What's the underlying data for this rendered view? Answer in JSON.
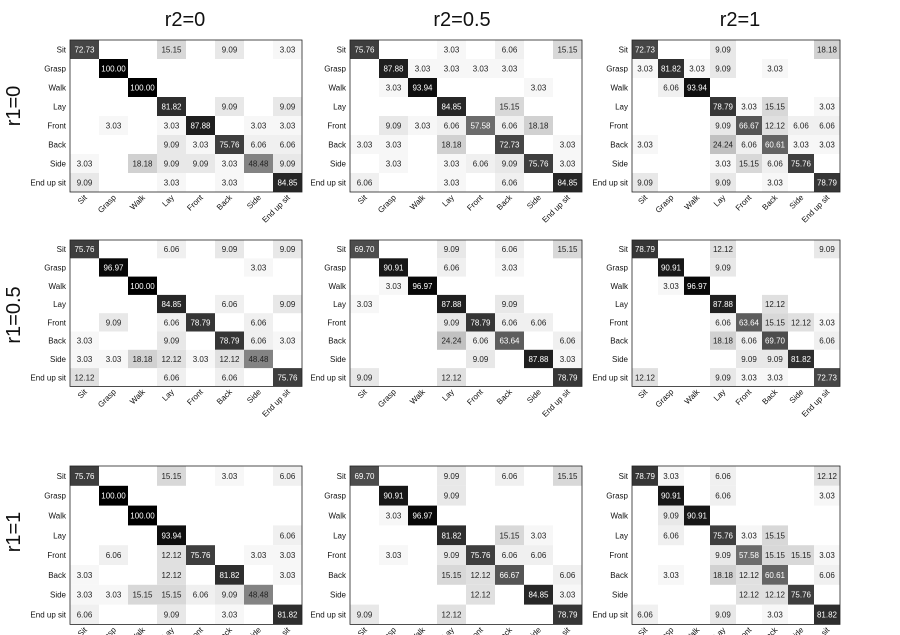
{
  "col_titles": [
    "r2=0",
    "r2=0.5",
    "r2=1"
  ],
  "row_titles": [
    "r1=0",
    "r1=0.5",
    "r1=1"
  ],
  "chart_data": {
    "type": "heatmap",
    "classes": [
      "Sit",
      "Grasp",
      "Walk",
      "Lay",
      "Front",
      "Back",
      "Side",
      "End up sit"
    ],
    "value_range": [
      0,
      100
    ],
    "colormap": "white-to-black",
    "grid": false,
    "panels": [
      {
        "row": 0,
        "col": 0,
        "matrix": [
          [
            72.73,
            0,
            0,
            15.15,
            0,
            9.09,
            0,
            3.03
          ],
          [
            0,
            100.0,
            0,
            0,
            0,
            0,
            0,
            0
          ],
          [
            0,
            0,
            100.0,
            0,
            0,
            0,
            0,
            0
          ],
          [
            0,
            0,
            0,
            81.82,
            0,
            9.09,
            0,
            9.09
          ],
          [
            0,
            3.03,
            0,
            3.03,
            87.88,
            0,
            3.03,
            3.03
          ],
          [
            0,
            0,
            0,
            9.09,
            3.03,
            75.76,
            6.06,
            6.06
          ],
          [
            3.03,
            0,
            18.18,
            9.09,
            9.09,
            3.03,
            48.48,
            9.09
          ],
          [
            9.09,
            0,
            0,
            3.03,
            0,
            3.03,
            0,
            84.85
          ]
        ]
      },
      {
        "row": 0,
        "col": 1,
        "matrix": [
          [
            75.76,
            0,
            0,
            3.03,
            0,
            6.06,
            0,
            15.15
          ],
          [
            0,
            87.88,
            3.03,
            3.03,
            3.03,
            3.03,
            0,
            0
          ],
          [
            0,
            3.03,
            93.94,
            0,
            0,
            0,
            3.03,
            0
          ],
          [
            0,
            0,
            0,
            84.85,
            0,
            15.15,
            0,
            0
          ],
          [
            0,
            9.09,
            3.03,
            6.06,
            57.58,
            6.06,
            18.18,
            0
          ],
          [
            3.03,
            3.03,
            0,
            18.18,
            0,
            72.73,
            0,
            3.03
          ],
          [
            0,
            3.03,
            0,
            3.03,
            6.06,
            9.09,
            75.76,
            3.03
          ],
          [
            6.06,
            0,
            0,
            3.03,
            0,
            6.06,
            0,
            84.85
          ]
        ]
      },
      {
        "row": 0,
        "col": 2,
        "matrix": [
          [
            72.73,
            0,
            0,
            9.09,
            0,
            0,
            0,
            18.18
          ],
          [
            3.03,
            81.82,
            3.03,
            9.09,
            0,
            3.03,
            0,
            0
          ],
          [
            0,
            6.06,
            93.94,
            0,
            0,
            0,
            0,
            0
          ],
          [
            0,
            0,
            0,
            78.79,
            3.03,
            15.15,
            0,
            3.03
          ],
          [
            0,
            0,
            0,
            9.09,
            66.67,
            12.12,
            6.06,
            6.06
          ],
          [
            3.03,
            0,
            0,
            24.24,
            6.06,
            60.61,
            3.03,
            3.03
          ],
          [
            0,
            0,
            0,
            3.03,
            15.15,
            6.06,
            75.76,
            0
          ],
          [
            9.09,
            0,
            0,
            9.09,
            0,
            3.03,
            0,
            78.79
          ]
        ]
      },
      {
        "row": 1,
        "col": 0,
        "matrix": [
          [
            75.76,
            0,
            0,
            6.06,
            0,
            9.09,
            0,
            9.09
          ],
          [
            0,
            96.97,
            0,
            0,
            0,
            0,
            3.03,
            0
          ],
          [
            0,
            0,
            100.0,
            0,
            0,
            0,
            0,
            0
          ],
          [
            0,
            0,
            0,
            84.85,
            0,
            6.06,
            0,
            9.09
          ],
          [
            0,
            9.09,
            0,
            6.06,
            78.79,
            0,
            6.06,
            0
          ],
          [
            3.03,
            0,
            0,
            9.09,
            0,
            78.79,
            6.06,
            3.03
          ],
          [
            3.03,
            3.03,
            18.18,
            12.12,
            3.03,
            12.12,
            48.48,
            0
          ],
          [
            12.12,
            0,
            0,
            6.06,
            0,
            6.06,
            0,
            75.76
          ]
        ]
      },
      {
        "row": 1,
        "col": 1,
        "matrix": [
          [
            69.7,
            0,
            0,
            9.09,
            0,
            6.06,
            0,
            15.15
          ],
          [
            0,
            90.91,
            0,
            6.06,
            0,
            3.03,
            0,
            0
          ],
          [
            0,
            3.03,
            96.97,
            0,
            0,
            0,
            0,
            0
          ],
          [
            3.03,
            0,
            0,
            87.88,
            0,
            9.09,
            0,
            0
          ],
          [
            0,
            0,
            0,
            9.09,
            78.79,
            6.06,
            6.06,
            0
          ],
          [
            0,
            0,
            0,
            24.24,
            6.06,
            63.64,
            0,
            6.06
          ],
          [
            0,
            0,
            0,
            0,
            9.09,
            0,
            87.88,
            3.03
          ],
          [
            9.09,
            0,
            0,
            12.12,
            0,
            0,
            0,
            78.79
          ]
        ]
      },
      {
        "row": 1,
        "col": 2,
        "matrix": [
          [
            78.79,
            0,
            0,
            12.12,
            0,
            0,
            0,
            9.09
          ],
          [
            0,
            90.91,
            0,
            9.09,
            0,
            0,
            0,
            0
          ],
          [
            0,
            3.03,
            96.97,
            0,
            0,
            0,
            0,
            0
          ],
          [
            0,
            0,
            0,
            87.88,
            0,
            12.12,
            0,
            0
          ],
          [
            0,
            0,
            0,
            6.06,
            63.64,
            15.15,
            12.12,
            3.03
          ],
          [
            0,
            0,
            0,
            18.18,
            6.06,
            69.7,
            0,
            6.06
          ],
          [
            0,
            0,
            0,
            0,
            9.09,
            9.09,
            81.82,
            0
          ],
          [
            12.12,
            0,
            0,
            9.09,
            3.03,
            3.03,
            0,
            72.73
          ]
        ]
      },
      {
        "row": 2,
        "col": 0,
        "matrix": [
          [
            75.76,
            0,
            0,
            15.15,
            0,
            3.03,
            0,
            6.06
          ],
          [
            0,
            100.0,
            0,
            0,
            0,
            0,
            0,
            0
          ],
          [
            0,
            0,
            100.0,
            0,
            0,
            0,
            0,
            0
          ],
          [
            0,
            0,
            0,
            93.94,
            0,
            0,
            0,
            6.06
          ],
          [
            0,
            6.06,
            0,
            12.12,
            75.76,
            0,
            3.03,
            3.03
          ],
          [
            3.03,
            0,
            0,
            12.12,
            0,
            81.82,
            0,
            3.03
          ],
          [
            3.03,
            3.03,
            15.15,
            15.15,
            6.06,
            9.09,
            48.48,
            0
          ],
          [
            6.06,
            0,
            0,
            9.09,
            0,
            3.03,
            0,
            81.82
          ]
        ]
      },
      {
        "row": 2,
        "col": 1,
        "matrix": [
          [
            69.7,
            0,
            0,
            9.09,
            0,
            6.06,
            0,
            15.15
          ],
          [
            0,
            90.91,
            0,
            9.09,
            0,
            0,
            0,
            0
          ],
          [
            0,
            3.03,
            96.97,
            0,
            0,
            0,
            0,
            0
          ],
          [
            0,
            0,
            0,
            81.82,
            0,
            15.15,
            3.03,
            0
          ],
          [
            0,
            3.03,
            0,
            9.09,
            75.76,
            6.06,
            6.06,
            0
          ],
          [
            0,
            0,
            0,
            15.15,
            12.12,
            66.67,
            0,
            6.06
          ],
          [
            0,
            0,
            0,
            0,
            12.12,
            0,
            84.85,
            3.03
          ],
          [
            9.09,
            0,
            0,
            12.12,
            0,
            0,
            0,
            78.79
          ]
        ]
      },
      {
        "row": 2,
        "col": 2,
        "matrix": [
          [
            78.79,
            3.03,
            0,
            6.06,
            0,
            0,
            0,
            12.12
          ],
          [
            0,
            90.91,
            0,
            6.06,
            0,
            0,
            0,
            3.03
          ],
          [
            0,
            9.09,
            90.91,
            0,
            0,
            0,
            0,
            0
          ],
          [
            0,
            6.06,
            0,
            75.76,
            3.03,
            15.15,
            0,
            0
          ],
          [
            0,
            0,
            0,
            9.09,
            57.58,
            15.15,
            15.15,
            3.03
          ],
          [
            0,
            3.03,
            0,
            18.18,
            12.12,
            60.61,
            0,
            6.06
          ],
          [
            0,
            0,
            0,
            0,
            12.12,
            12.12,
            75.76,
            0
          ],
          [
            6.06,
            0,
            0,
            9.09,
            0,
            3.03,
            0,
            81.82
          ]
        ]
      }
    ]
  }
}
